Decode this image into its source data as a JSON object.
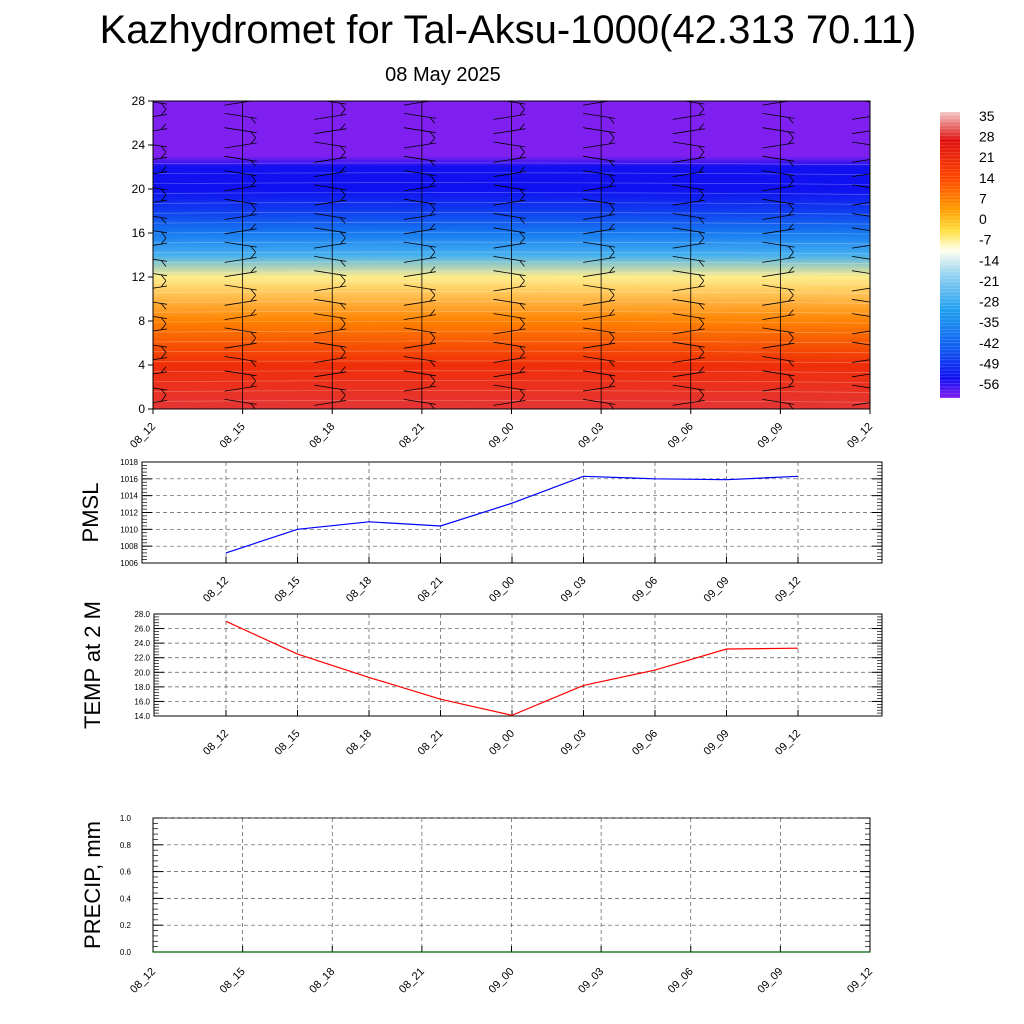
{
  "title": "Kazhydromet for Tal-Aksu-1000(42.313 70.11)",
  "subtitle": "08 May 2025",
  "chart_data": [
    {
      "type": "heatmap",
      "id": "temp-cross-section",
      "x_ticks": [
        "08_12",
        "08_15",
        "08_18",
        "08_21",
        "09_00",
        "09_03",
        "09_06",
        "09_09",
        "09_12"
      ],
      "y_ticks": [
        0,
        4,
        8,
        12,
        16,
        20,
        24,
        28
      ],
      "ylim": [
        0,
        28
      ],
      "profile": [
        {
          "level": 0,
          "value": 30
        },
        {
          "level": 4,
          "value": 21
        },
        {
          "level": 8,
          "value": 7
        },
        {
          "level": 12,
          "value": -7
        },
        {
          "level": 14,
          "value": -28
        },
        {
          "level": 16,
          "value": -40
        },
        {
          "level": 18,
          "value": -50
        },
        {
          "level": 20,
          "value": -56
        },
        {
          "level": 22,
          "value": -56
        },
        {
          "level": 23,
          "value": -63
        },
        {
          "level": 28,
          "value": -63
        }
      ],
      "colorbar": {
        "labels": [
          "35",
          "28",
          "21",
          "14",
          "7",
          "0",
          "-7",
          "-14",
          "-21",
          "-28",
          "-35",
          "-42",
          "-49",
          "-56"
        ],
        "stops": [
          {
            "value": 38,
            "color": "#f2c8c8"
          },
          {
            "value": 28,
            "color": "#e01010"
          },
          {
            "value": 14,
            "color": "#ff4a00"
          },
          {
            "value": 4,
            "color": "#ff9a00"
          },
          {
            "value": -4,
            "color": "#ffe040"
          },
          {
            "value": -11,
            "color": "#fffff0"
          },
          {
            "value": -20,
            "color": "#90d0f0"
          },
          {
            "value": -32,
            "color": "#20a0f0"
          },
          {
            "value": -45,
            "color": "#1060f0"
          },
          {
            "value": -56,
            "color": "#1010f0"
          },
          {
            "value": -63,
            "color": "#8020f0"
          }
        ]
      },
      "barb_columns": [
        "08_12",
        "08_15",
        "08_18",
        "08_21",
        "09_00",
        "09_03",
        "09_06",
        "09_09",
        "09_12"
      ]
    },
    {
      "type": "line",
      "id": "pmsl",
      "ylabel": "PMSL",
      "x_ticks": [
        "08_12",
        "08_15",
        "08_18",
        "08_21",
        "09_00",
        "09_03",
        "09_06",
        "09_09",
        "09_12"
      ],
      "y_ticks": [
        "1006",
        "1008",
        "1010",
        "1012",
        "1014",
        "1016",
        "1018"
      ],
      "ylim": [
        1006,
        1018
      ],
      "grid": true,
      "series": [
        {
          "color": "#0000ff",
          "values": [
            1007.2,
            1010.0,
            1010.9,
            1010.4,
            1013.1,
            1016.3,
            1016.0,
            1015.9,
            1016.3
          ]
        }
      ]
    },
    {
      "type": "line",
      "id": "temp2m",
      "ylabel": "TEMP at 2 M",
      "x_ticks": [
        "08_12",
        "08_15",
        "08_18",
        "08_21",
        "09_00",
        "09_03",
        "09_06",
        "09_09",
        "09_12"
      ],
      "y_ticks": [
        "14.0",
        "16.0",
        "18.0",
        "20.0",
        "22.0",
        "24.0",
        "26.0",
        "28.0"
      ],
      "ylim": [
        14,
        28
      ],
      "grid": true,
      "series": [
        {
          "color": "#ff0000",
          "values": [
            27.0,
            22.5,
            19.3,
            16.3,
            14.1,
            18.2,
            20.3,
            23.2,
            23.3
          ]
        }
      ]
    },
    {
      "type": "line",
      "id": "precip",
      "ylabel": "PRECIP, mm",
      "x_ticks": [
        "08_12",
        "08_15",
        "08_18",
        "08_21",
        "09_00",
        "09_03",
        "09_06",
        "09_09",
        "09_12"
      ],
      "y_ticks": [
        "0.0",
        "0.2",
        "0.4",
        "0.6",
        "0.8",
        "1.0"
      ],
      "ylim": [
        0,
        1
      ],
      "grid": true,
      "series": [
        {
          "color": "#006400",
          "values": [
            0,
            0,
            0,
            0,
            0,
            0,
            0,
            0,
            0
          ]
        }
      ]
    }
  ]
}
